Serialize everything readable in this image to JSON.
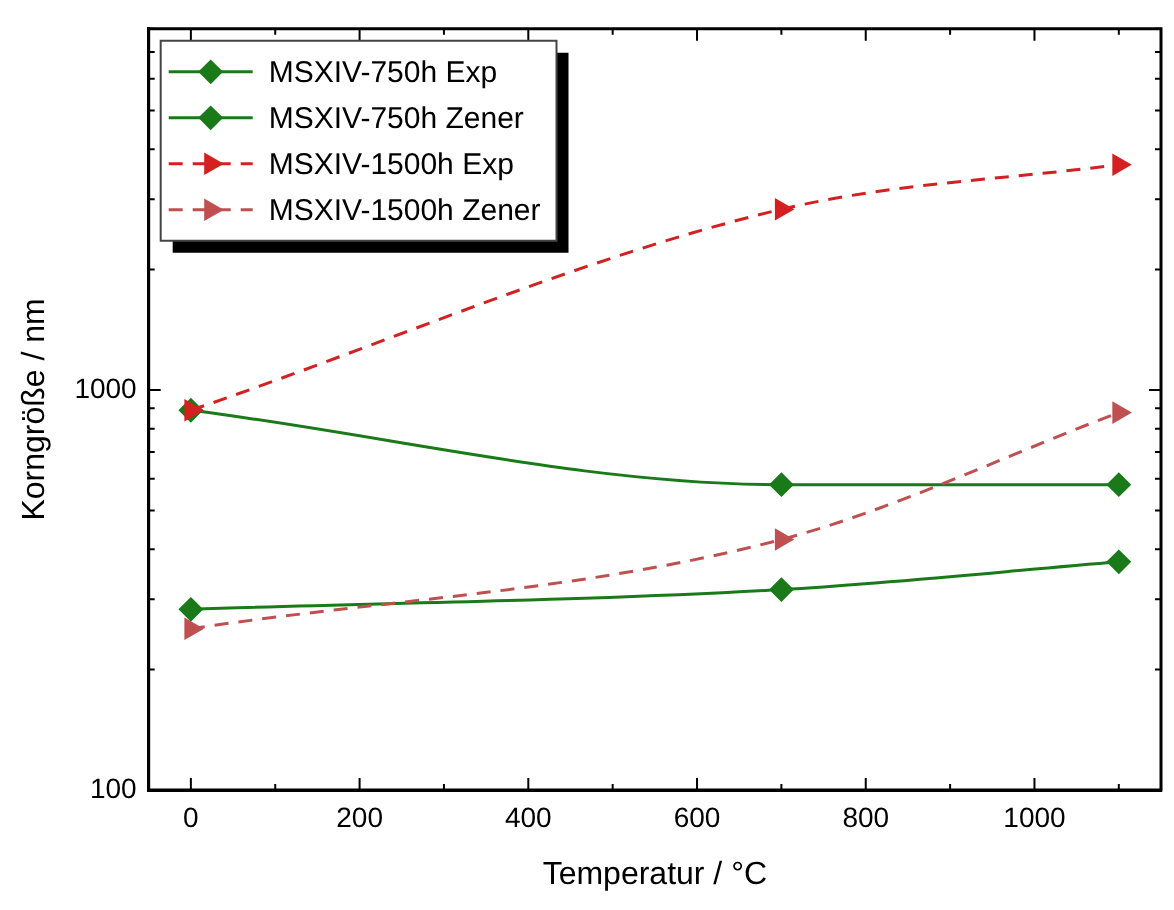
{
  "chart_data": {
    "type": "line",
    "xlabel": "Temperatur / °C",
    "ylabel": "Korngröße / nm",
    "x": [
      0,
      700,
      1100
    ],
    "series": [
      {
        "name": "MSXIV-750h Exp",
        "color": "#1a7a1a",
        "marker": "diamond",
        "line_style": "solid",
        "values": [
          890,
          580,
          580
        ]
      },
      {
        "name": "MSXIV-750h Zener",
        "color": "#1a7a1a",
        "marker": "diamond",
        "line_style": "solid",
        "values": [
          283,
          317,
          372
        ]
      },
      {
        "name": "MSXIV-1500h Exp",
        "color": "#d42020",
        "marker": "triangle",
        "line_style": "dashed",
        "values": [
          890,
          2830,
          3660
        ]
      },
      {
        "name": "MSXIV-1500h Zener",
        "color": "#c05050",
        "marker": "triangle",
        "line_style": "dashed",
        "values": [
          253,
          423,
          878
        ]
      }
    ],
    "log": "y",
    "grid": false,
    "legend": "top left",
    "xlim": [
      -50,
      1150
    ],
    "xticks": [
      0,
      {
        "value": 100,
        "label": null
      },
      200,
      {
        "value": 300,
        "label": null
      },
      400,
      {
        "value": 500,
        "label": null
      },
      600,
      {
        "value": 700,
        "label": null
      },
      800,
      {
        "value": 900,
        "label": null
      },
      1000,
      {
        "value": 1100,
        "label": null
      }
    ],
    "ylim": [
      100,
      8000
    ],
    "yticks": [
      100,
      {
        "value": 200,
        "label": null
      },
      {
        "value": 300,
        "label": null
      },
      {
        "value": 400,
        "label": null
      },
      {
        "value": 500,
        "label": null
      },
      {
        "value": 600,
        "label": null
      },
      {
        "value": 700,
        "label": null
      },
      {
        "value": 800,
        "label": null
      },
      {
        "value": 900,
        "label": null
      },
      1000,
      {
        "value": 2000,
        "label": null
      },
      {
        "value": 3000,
        "label": null
      },
      {
        "value": 4000,
        "label": null
      },
      {
        "value": 5000,
        "label": null
      },
      {
        "value": 6000,
        "label": null
      },
      {
        "value": 7000,
        "label": null
      },
      {
        "value": 8000,
        "label": null
      }
    ]
  }
}
